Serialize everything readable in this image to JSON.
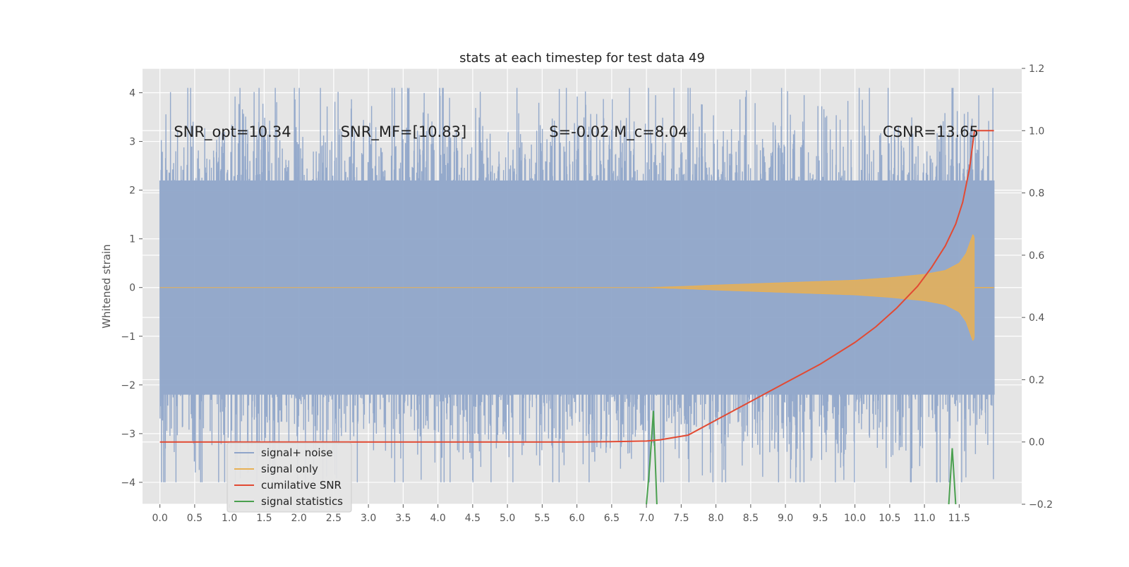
{
  "chart_data": {
    "type": "line",
    "title": "stats at each timestep for test data 49",
    "ylabel": "Whitened strain",
    "xlabel": "",
    "xlim": [
      -0.25,
      12.4
    ],
    "ylim": [
      -4.45,
      4.5
    ],
    "y2lim": [
      -0.2,
      1.2
    ],
    "grid": true,
    "x_ticks": [
      "0.0",
      "0.5",
      "1.0",
      "1.5",
      "2.0",
      "2.5",
      "3.0",
      "3.5",
      "4.0",
      "4.5",
      "5.0",
      "5.5",
      "6.0",
      "6.5",
      "7.0",
      "7.5",
      "8.0",
      "8.5",
      "9.0",
      "9.5",
      "10.0",
      "10.5",
      "11.0",
      "11.5"
    ],
    "y_ticks": [
      "4",
      "3",
      "2",
      "1",
      "0",
      "−1",
      "−2",
      "−3",
      "−4"
    ],
    "y2_ticks": [
      "1.2",
      "1.0",
      "0.8",
      "0.6",
      "0.4",
      "0.2",
      "0.0",
      "−0.2"
    ],
    "annotations": [
      {
        "id": "snr-opt",
        "text": "SNR_opt=10.34",
        "x": 0.2,
        "y": 3.2
      },
      {
        "id": "snr-mf",
        "text": "SNR_MF=[10.83]",
        "x": 2.6,
        "y": 3.2
      },
      {
        "id": "s-mc",
        "text": "S=-0.02  M_c=8.04",
        "x": 5.6,
        "y": 3.2
      },
      {
        "id": "csnr",
        "text": "CSNR=13.65",
        "x": 10.4,
        "y": 3.2
      }
    ],
    "series": [
      {
        "name": "signal+ noise",
        "type": "noise-band",
        "axis": "left",
        "x_range": [
          0.0,
          12.0
        ],
        "sigma": 1.0,
        "typical_range": [
          -2.3,
          2.3
        ]
      },
      {
        "name": "signal only",
        "type": "chirp",
        "axis": "left",
        "x_range": [
          0.0,
          11.72
        ],
        "envelope": {
          "x": [
            0,
            6.0,
            7.0,
            7.5,
            8.0,
            9.0,
            10.0,
            10.5,
            11.0,
            11.3,
            11.5,
            11.6,
            11.65,
            11.7,
            11.72
          ],
          "amp": [
            0,
            0.0,
            0.0,
            0.02,
            0.05,
            0.1,
            0.15,
            0.2,
            0.27,
            0.35,
            0.5,
            0.7,
            0.9,
            1.1,
            1.0
          ]
        }
      },
      {
        "name": "cumilative SNR",
        "type": "line",
        "axis": "right",
        "x": [
          0.0,
          6.0,
          6.5,
          7.0,
          7.2,
          7.6,
          8.0,
          8.5,
          9.0,
          9.5,
          10.0,
          10.3,
          10.6,
          10.9,
          11.1,
          11.3,
          11.45,
          11.55,
          11.65,
          11.72,
          12.0
        ],
        "y": [
          0.0,
          0.0,
          0.001,
          0.003,
          0.007,
          0.022,
          0.07,
          0.13,
          0.19,
          0.25,
          0.32,
          0.37,
          0.43,
          0.5,
          0.56,
          0.63,
          0.7,
          0.77,
          0.88,
          1.0,
          1.0
        ]
      },
      {
        "name": "signal statistics",
        "type": "spikes",
        "axis": "right",
        "spikes": [
          {
            "x": [
              7.0,
              7.05,
              7.1,
              7.15
            ],
            "y": [
              -0.2,
              -0.07,
              0.1,
              -0.2
            ]
          },
          {
            "x": [
              11.35,
              11.4,
              11.45
            ],
            "y": [
              -0.2,
              -0.02,
              -0.2
            ]
          }
        ]
      }
    ],
    "legend": {
      "placement": "lower-left"
    }
  },
  "colors": {
    "background": "#e5e5e5",
    "grid": "#ffffff",
    "signal_noise": "#8fa5c9",
    "signal_only": "#e8b055",
    "cumulative_snr": "#e24a33",
    "signal_statistics": "#4aa04f"
  }
}
